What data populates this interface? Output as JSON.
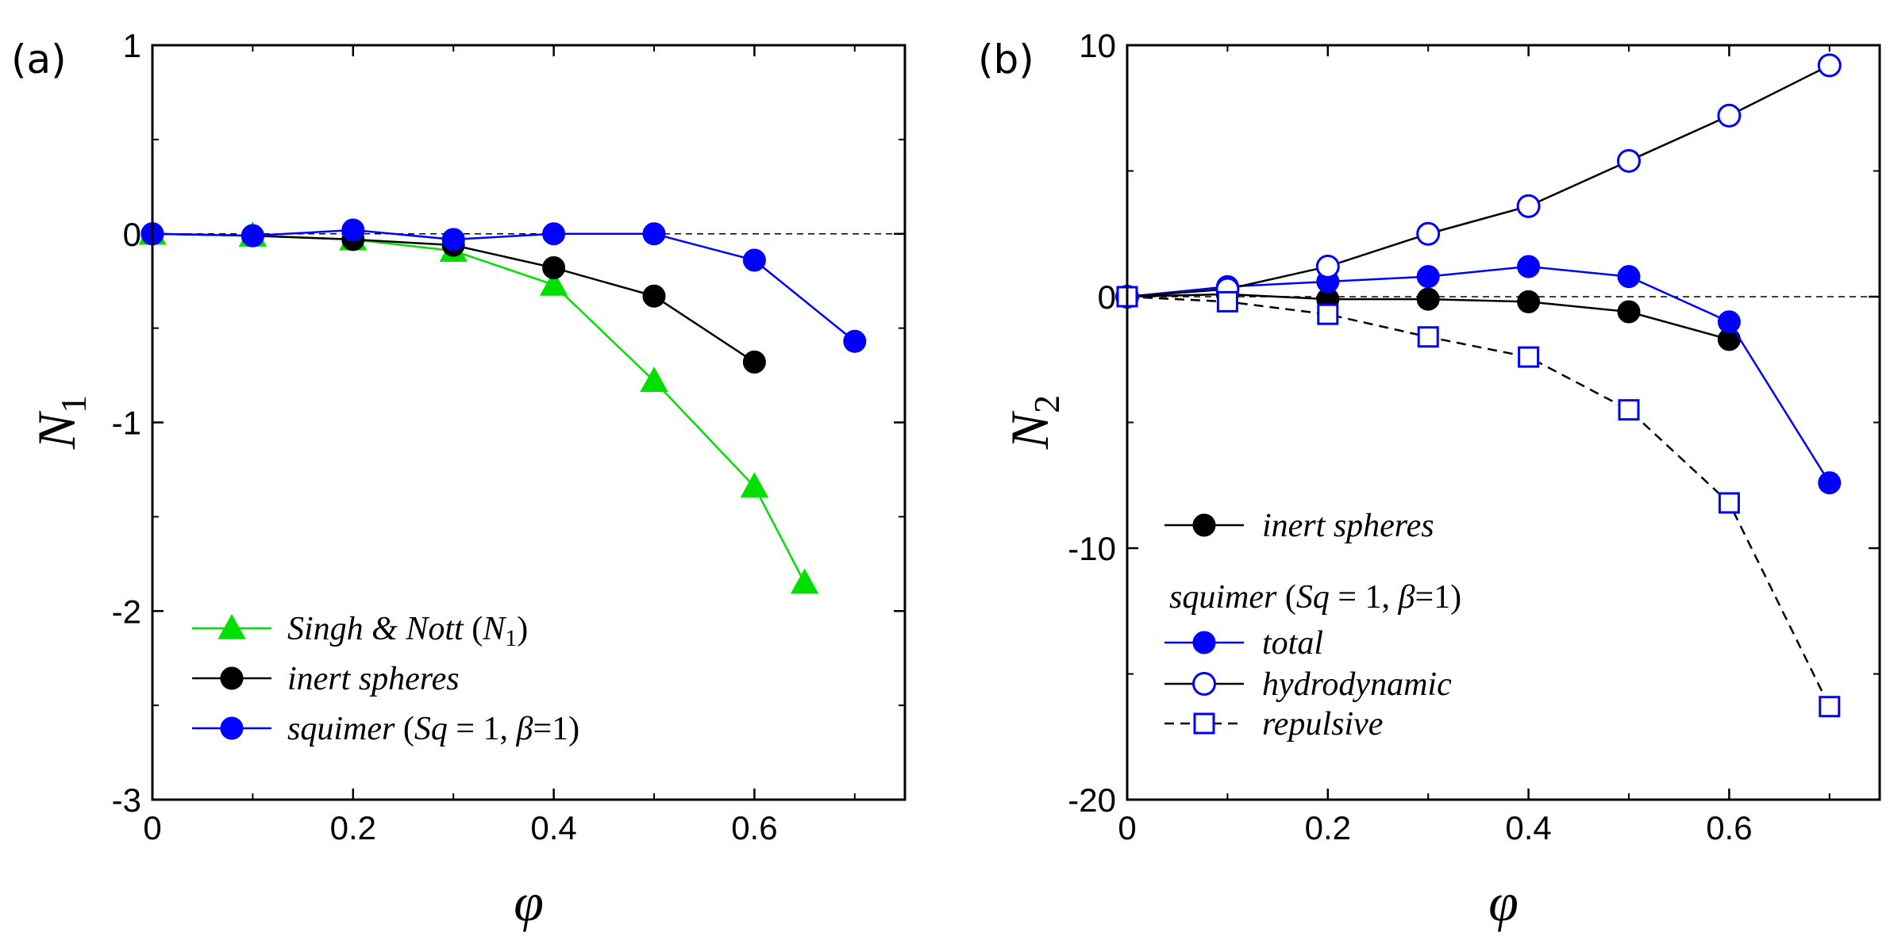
{
  "chart_data": [
    {
      "type": "line",
      "panel_label": "(a)",
      "xlabel": "φ",
      "ylabel": "N",
      "ylabel_sub": "1",
      "xlim": [
        0,
        0.75
      ],
      "ylim": [
        -3,
        1
      ],
      "xticks": [
        0,
        0.2,
        0.4,
        0.6
      ],
      "xtick_labels": [
        "0",
        "0.2",
        "0.4",
        "0.6"
      ],
      "yticks": [
        1,
        0,
        -1,
        -2,
        -3
      ],
      "ytick_labels": [
        "1",
        "0",
        "-1",
        "-2",
        "-3"
      ],
      "zero_line": true,
      "legend_position": "lower-left",
      "series": [
        {
          "key": "singh-nott",
          "name": "Singh & Nott (N1)",
          "color": "#00e000",
          "marker": "triangle",
          "filled": true,
          "dashed": false,
          "x": [
            0,
            0.1,
            0.2,
            0.3,
            0.4,
            0.5,
            0.6,
            0.65
          ],
          "y": [
            0,
            -0.01,
            -0.03,
            -0.09,
            -0.27,
            -0.78,
            -1.34,
            -1.85
          ]
        },
        {
          "key": "inert-spheres",
          "name": "inert spheres",
          "color": "#000000",
          "marker": "circle",
          "filled": true,
          "dashed": false,
          "x": [
            0,
            0.1,
            0.2,
            0.3,
            0.4,
            0.5,
            0.6
          ],
          "y": [
            0,
            -0.01,
            -0.03,
            -0.06,
            -0.18,
            -0.33,
            -0.68
          ]
        },
        {
          "key": "squimer",
          "name": "squimer (Sq = 1, β=1)",
          "color": "#0000ff",
          "marker": "circle",
          "filled": true,
          "dashed": false,
          "x": [
            0,
            0.1,
            0.2,
            0.3,
            0.4,
            0.5,
            0.6,
            0.7
          ],
          "y": [
            0,
            -0.01,
            0.02,
            -0.03,
            0,
            0,
            -0.14,
            -0.57
          ]
        }
      ],
      "legend": [
        {
          "series": "singh-nott",
          "text_it": "Singh & Nott ",
          "text_open": "(",
          "text_var": "N",
          "text_sub": "1",
          "text_close": ")"
        },
        {
          "series": "inert-spheres",
          "text_it": "inert spheres"
        },
        {
          "series": "squimer",
          "text_it": "squimer",
          "text_rest": " (",
          "text_var": "Sq",
          "text_eq": " = 1,  ",
          "text_beta": "β",
          "text_beq": "=1)"
        }
      ]
    },
    {
      "type": "line",
      "panel_label": "(b)",
      "xlabel": "φ",
      "ylabel": "N",
      "ylabel_sub": "2",
      "xlim": [
        0,
        0.75
      ],
      "ylim": [
        -20,
        10
      ],
      "xticks": [
        0,
        0.2,
        0.4,
        0.6
      ],
      "xtick_labels": [
        "0",
        "0.2",
        "0.4",
        "0.6"
      ],
      "yticks": [
        10,
        0,
        -10,
        -20
      ],
      "ytick_labels": [
        "10",
        "0",
        "-10",
        "-20"
      ],
      "zero_line": true,
      "legend_position": "lower-left",
      "series": [
        {
          "key": "inert-spheres",
          "name": "inert spheres",
          "color": "#000000",
          "line_color": "#000000",
          "marker": "circle",
          "filled": true,
          "dashed": false,
          "x": [
            0,
            0.1,
            0.2,
            0.3,
            0.4,
            0.5,
            0.6
          ],
          "y": [
            0,
            0.1,
            -0.1,
            -0.1,
            -0.2,
            -0.6,
            -1.7
          ]
        },
        {
          "key": "total",
          "name": "total",
          "color": "#0000ff",
          "line_color": "#0000ff",
          "marker": "circle",
          "filled": true,
          "dashed": false,
          "x": [
            0,
            0.1,
            0.2,
            0.3,
            0.4,
            0.5,
            0.6,
            0.7
          ],
          "y": [
            0,
            0.4,
            0.6,
            0.8,
            1.2,
            0.8,
            -1.0,
            -7.4
          ]
        },
        {
          "key": "hydrodynamic",
          "name": "hydrodynamic",
          "color": "#0000ff",
          "line_color": "#000000",
          "marker": "circle",
          "filled": false,
          "dashed": false,
          "x": [
            0,
            0.1,
            0.2,
            0.3,
            0.4,
            0.5,
            0.6,
            0.7
          ],
          "y": [
            0,
            0.3,
            1.2,
            2.5,
            3.6,
            5.4,
            7.2,
            9.2
          ]
        },
        {
          "key": "repulsive",
          "name": "repulsive",
          "color": "#0000ff",
          "line_color": "#000000",
          "marker": "square",
          "filled": false,
          "dashed": true,
          "x": [
            0,
            0.1,
            0.2,
            0.3,
            0.4,
            0.5,
            0.6,
            0.7
          ],
          "y": [
            0,
            -0.2,
            -0.7,
            -1.6,
            -2.4,
            -4.5,
            -8.2,
            -16.3
          ]
        }
      ],
      "legend": [
        {
          "series": "inert-spheres",
          "text_it": "inert spheres"
        },
        {
          "heading": true,
          "text_it": "squimer",
          "text_rest": " (",
          "text_var": "Sq",
          "text_eq": " = 1,  ",
          "text_beta": "β",
          "text_beq": "=1)"
        },
        {
          "series": "total",
          "text_it": "total"
        },
        {
          "series": "hydrodynamic",
          "text_it": "hydrodynamic"
        },
        {
          "series": "repulsive",
          "text_it": "repulsive"
        }
      ]
    }
  ]
}
